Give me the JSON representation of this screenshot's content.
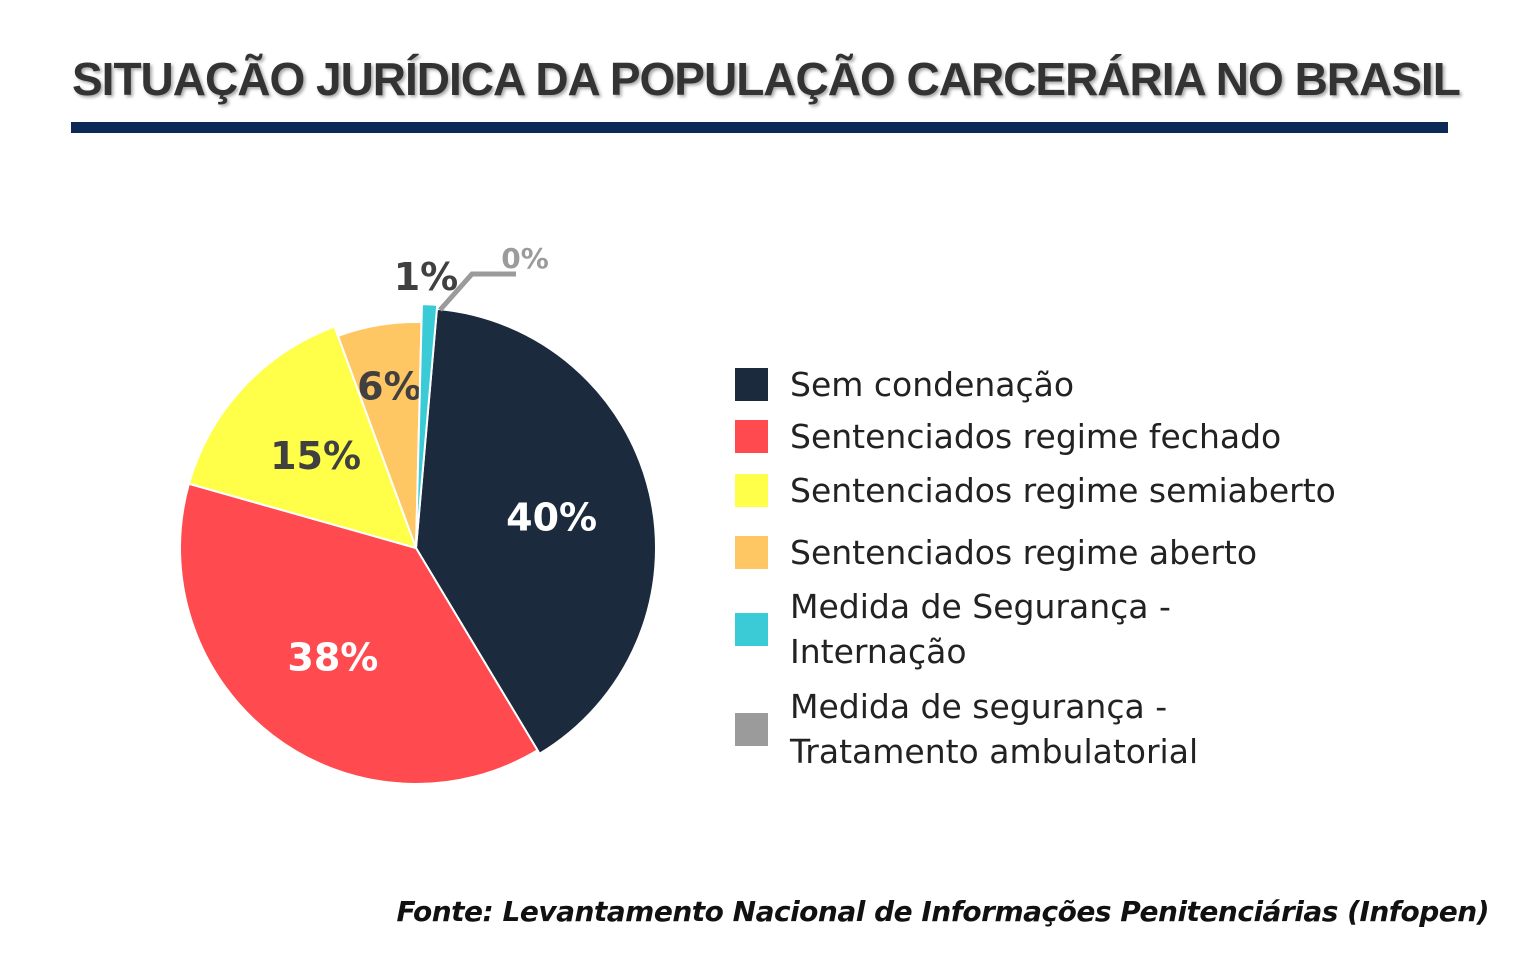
{
  "chart_data": {
    "type": "pie",
    "title": "SITUAÇÃO JURÍDICA DA POPULAÇÃO CARCERÁRIA NO BRASIL",
    "slices": [
      {
        "label": "Sem condenação",
        "value": 40,
        "data_label": "40%",
        "color": "#1b2a3d",
        "label_color": "#ffffff"
      },
      {
        "label": "Sentenciados regime fechado",
        "value": 38,
        "data_label": "38%",
        "color": "#ff4b4f",
        "label_color": "#ffffff"
      },
      {
        "label": "Sentenciados regime semiaberto",
        "value": 15,
        "data_label": "15%",
        "color": "#ffff4a",
        "label_color": "#404040"
      },
      {
        "label": "Sentenciados regime aberto",
        "value": 6,
        "data_label": "6%",
        "color": "#ffc664",
        "label_color": "#404040"
      },
      {
        "label": "Medida de Segurança - Internação",
        "value": 1,
        "data_label": "1%",
        "color": "#3acbd6",
        "label_color": "#404040"
      },
      {
        "label": "Medida de segurança - Tratamento ambulatorial",
        "value": 0,
        "data_label": "0%",
        "color": "#9b9b9b",
        "label_color": "#9b9b9b"
      }
    ],
    "legend_placement": "right",
    "source": "Fonte: Levantamento Nacional de Informações Penitenciárias (Infopen)"
  }
}
